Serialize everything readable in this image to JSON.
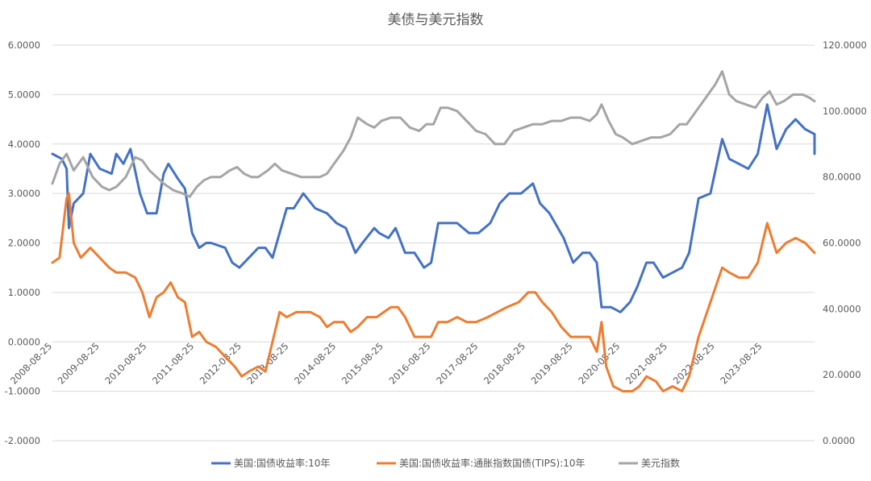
{
  "chart_data": {
    "type": "line",
    "title": "美债与美元指数",
    "categories": [
      "2008-08-25",
      "2009-08-25",
      "2010-08-25",
      "2011-08-25",
      "2012-08-25",
      "2013-08-25",
      "2014-08-25",
      "2015-08-25",
      "2016-08-25",
      "2017-08-25",
      "2018-08-25",
      "2019-08-25",
      "2020-08-25",
      "2021-08-25",
      "2022-08-25",
      "2023-08-25"
    ],
    "y_left": {
      "lim": [
        -2,
        6
      ],
      "ticks": [
        -2,
        -1,
        0,
        1,
        2,
        3,
        4,
        5,
        6
      ],
      "tick_labels": [
        "-2.0000",
        "-1.0000",
        "0.0000",
        "1.0000",
        "2.0000",
        "3.0000",
        "4.0000",
        "5.0000",
        "6.0000"
      ]
    },
    "y_right": {
      "lim": [
        0,
        120
      ],
      "ticks": [
        0,
        20,
        40,
        60,
        80,
        100,
        120
      ],
      "tick_labels": [
        "0.0000",
        "20.0000",
        "40.0000",
        "60.0000",
        "80.0000",
        "100.0000",
        "120.0000"
      ]
    },
    "x_range": [
      2008.65,
      2024.75
    ],
    "legend_position": "bottom",
    "series": [
      {
        "name": "美国:国债收益率:10年",
        "axis": "left",
        "color": "#4472C4",
        "points": [
          [
            2008.65,
            3.8
          ],
          [
            2008.85,
            3.7
          ],
          [
            2008.95,
            3.5
          ],
          [
            2009.0,
            2.3
          ],
          [
            2009.1,
            2.8
          ],
          [
            2009.3,
            3.0
          ],
          [
            2009.45,
            3.8
          ],
          [
            2009.65,
            3.5
          ],
          [
            2009.9,
            3.4
          ],
          [
            2010.0,
            3.8
          ],
          [
            2010.15,
            3.6
          ],
          [
            2010.3,
            3.9
          ],
          [
            2010.5,
            3.0
          ],
          [
            2010.65,
            2.6
          ],
          [
            2010.85,
            2.6
          ],
          [
            2011.0,
            3.4
          ],
          [
            2011.1,
            3.6
          ],
          [
            2011.3,
            3.3
          ],
          [
            2011.45,
            3.1
          ],
          [
            2011.6,
            2.2
          ],
          [
            2011.75,
            1.9
          ],
          [
            2011.9,
            2.0
          ],
          [
            2012.0,
            2.0
          ],
          [
            2012.3,
            1.9
          ],
          [
            2012.45,
            1.6
          ],
          [
            2012.6,
            1.5
          ],
          [
            2012.8,
            1.7
          ],
          [
            2013.0,
            1.9
          ],
          [
            2013.15,
            1.9
          ],
          [
            2013.3,
            1.7
          ],
          [
            2013.45,
            2.2
          ],
          [
            2013.6,
            2.7
          ],
          [
            2013.75,
            2.7
          ],
          [
            2013.95,
            3.0
          ],
          [
            2014.2,
            2.7
          ],
          [
            2014.45,
            2.6
          ],
          [
            2014.65,
            2.4
          ],
          [
            2014.85,
            2.3
          ],
          [
            2015.05,
            1.8
          ],
          [
            2015.2,
            2.0
          ],
          [
            2015.45,
            2.3
          ],
          [
            2015.55,
            2.2
          ],
          [
            2015.75,
            2.1
          ],
          [
            2015.9,
            2.3
          ],
          [
            2016.1,
            1.8
          ],
          [
            2016.3,
            1.8
          ],
          [
            2016.5,
            1.5
          ],
          [
            2016.65,
            1.6
          ],
          [
            2016.8,
            2.4
          ],
          [
            2017.0,
            2.4
          ],
          [
            2017.2,
            2.4
          ],
          [
            2017.45,
            2.2
          ],
          [
            2017.65,
            2.2
          ],
          [
            2017.9,
            2.4
          ],
          [
            2018.1,
            2.8
          ],
          [
            2018.3,
            3.0
          ],
          [
            2018.55,
            3.0
          ],
          [
            2018.8,
            3.2
          ],
          [
            2018.95,
            2.8
          ],
          [
            2019.15,
            2.6
          ],
          [
            2019.45,
            2.1
          ],
          [
            2019.65,
            1.6
          ],
          [
            2019.85,
            1.8
          ],
          [
            2020.0,
            1.8
          ],
          [
            2020.15,
            1.6
          ],
          [
            2020.25,
            0.7
          ],
          [
            2020.45,
            0.7
          ],
          [
            2020.65,
            0.6
          ],
          [
            2020.85,
            0.8
          ],
          [
            2021.0,
            1.1
          ],
          [
            2021.2,
            1.6
          ],
          [
            2021.35,
            1.6
          ],
          [
            2021.55,
            1.3
          ],
          [
            2021.75,
            1.4
          ],
          [
            2021.95,
            1.5
          ],
          [
            2022.1,
            1.8
          ],
          [
            2022.3,
            2.9
          ],
          [
            2022.55,
            3.0
          ],
          [
            2022.8,
            4.1
          ],
          [
            2022.95,
            3.7
          ],
          [
            2023.15,
            3.6
          ],
          [
            2023.35,
            3.5
          ],
          [
            2023.55,
            3.8
          ],
          [
            2023.75,
            4.8
          ],
          [
            2023.95,
            3.9
          ],
          [
            2024.15,
            4.3
          ],
          [
            2024.35,
            4.5
          ],
          [
            2024.55,
            4.3
          ],
          [
            2024.75,
            4.2
          ],
          [
            2024.75,
            3.8
          ]
        ]
      },
      {
        "name": "美国:国债收益率:通胀指数国债(TIPS):10年",
        "axis": "left",
        "color": "#ED7D31",
        "points": [
          [
            2008.65,
            1.6
          ],
          [
            2008.8,
            1.7
          ],
          [
            2008.95,
            2.9
          ],
          [
            2009.0,
            3.0
          ],
          [
            2009.1,
            2.0
          ],
          [
            2009.25,
            1.7
          ],
          [
            2009.45,
            1.9
          ],
          [
            2009.65,
            1.7
          ],
          [
            2009.85,
            1.5
          ],
          [
            2010.0,
            1.4
          ],
          [
            2010.2,
            1.4
          ],
          [
            2010.4,
            1.3
          ],
          [
            2010.55,
            1.0
          ],
          [
            2010.7,
            0.5
          ],
          [
            2010.85,
            0.9
          ],
          [
            2011.0,
            1.0
          ],
          [
            2011.15,
            1.2
          ],
          [
            2011.3,
            0.9
          ],
          [
            2011.45,
            0.8
          ],
          [
            2011.6,
            0.1
          ],
          [
            2011.75,
            0.2
          ],
          [
            2011.9,
            0.0
          ],
          [
            2012.1,
            -0.1
          ],
          [
            2012.3,
            -0.3
          ],
          [
            2012.5,
            -0.5
          ],
          [
            2012.65,
            -0.7
          ],
          [
            2012.8,
            -0.6
          ],
          [
            2013.0,
            -0.5
          ],
          [
            2013.15,
            -0.6
          ],
          [
            2013.3,
            0.0
          ],
          [
            2013.45,
            0.6
          ],
          [
            2013.6,
            0.5
          ],
          [
            2013.8,
            0.6
          ],
          [
            2013.95,
            0.6
          ],
          [
            2014.1,
            0.6
          ],
          [
            2014.3,
            0.5
          ],
          [
            2014.45,
            0.3
          ],
          [
            2014.6,
            0.4
          ],
          [
            2014.8,
            0.4
          ],
          [
            2014.95,
            0.2
          ],
          [
            2015.1,
            0.3
          ],
          [
            2015.3,
            0.5
          ],
          [
            2015.5,
            0.5
          ],
          [
            2015.65,
            0.6
          ],
          [
            2015.8,
            0.7
          ],
          [
            2015.95,
            0.7
          ],
          [
            2016.1,
            0.5
          ],
          [
            2016.3,
            0.1
          ],
          [
            2016.5,
            0.1
          ],
          [
            2016.65,
            0.1
          ],
          [
            2016.8,
            0.4
          ],
          [
            2017.0,
            0.4
          ],
          [
            2017.2,
            0.5
          ],
          [
            2017.4,
            0.4
          ],
          [
            2017.6,
            0.4
          ],
          [
            2017.85,
            0.5
          ],
          [
            2018.05,
            0.6
          ],
          [
            2018.25,
            0.7
          ],
          [
            2018.5,
            0.8
          ],
          [
            2018.7,
            1.0
          ],
          [
            2018.85,
            1.0
          ],
          [
            2019.0,
            0.8
          ],
          [
            2019.2,
            0.6
          ],
          [
            2019.4,
            0.3
          ],
          [
            2019.6,
            0.1
          ],
          [
            2019.8,
            0.1
          ],
          [
            2020.0,
            0.1
          ],
          [
            2020.15,
            -0.2
          ],
          [
            2020.25,
            0.4
          ],
          [
            2020.35,
            -0.5
          ],
          [
            2020.5,
            -0.9
          ],
          [
            2020.7,
            -1.0
          ],
          [
            2020.9,
            -1.0
          ],
          [
            2021.05,
            -0.9
          ],
          [
            2021.2,
            -0.7
          ],
          [
            2021.4,
            -0.8
          ],
          [
            2021.55,
            -1.0
          ],
          [
            2021.75,
            -0.9
          ],
          [
            2021.95,
            -1.0
          ],
          [
            2022.1,
            -0.7
          ],
          [
            2022.3,
            0.1
          ],
          [
            2022.55,
            0.8
          ],
          [
            2022.8,
            1.5
          ],
          [
            2022.95,
            1.4
          ],
          [
            2023.15,
            1.3
          ],
          [
            2023.35,
            1.3
          ],
          [
            2023.55,
            1.6
          ],
          [
            2023.75,
            2.4
          ],
          [
            2023.95,
            1.8
          ],
          [
            2024.15,
            2.0
          ],
          [
            2024.35,
            2.1
          ],
          [
            2024.55,
            2.0
          ],
          [
            2024.75,
            1.8
          ]
        ]
      },
      {
        "name": "美元指数",
        "axis": "right",
        "color": "#A5A5A5",
        "points": [
          [
            2008.65,
            78
          ],
          [
            2008.8,
            84
          ],
          [
            2008.95,
            87
          ],
          [
            2009.1,
            82
          ],
          [
            2009.3,
            86
          ],
          [
            2009.5,
            80
          ],
          [
            2009.7,
            77
          ],
          [
            2009.85,
            76
          ],
          [
            2010.0,
            77
          ],
          [
            2010.2,
            80
          ],
          [
            2010.4,
            86
          ],
          [
            2010.55,
            85
          ],
          [
            2010.7,
            82
          ],
          [
            2010.85,
            80
          ],
          [
            2011.0,
            78
          ],
          [
            2011.2,
            76
          ],
          [
            2011.4,
            75
          ],
          [
            2011.55,
            74
          ],
          [
            2011.7,
            77
          ],
          [
            2011.85,
            79
          ],
          [
            2012.0,
            80
          ],
          [
            2012.2,
            80
          ],
          [
            2012.4,
            82
          ],
          [
            2012.55,
            83
          ],
          [
            2012.7,
            81
          ],
          [
            2012.85,
            80
          ],
          [
            2013.0,
            80
          ],
          [
            2013.2,
            82
          ],
          [
            2013.35,
            84
          ],
          [
            2013.5,
            82
          ],
          [
            2013.7,
            81
          ],
          [
            2013.9,
            80
          ],
          [
            2014.1,
            80
          ],
          [
            2014.3,
            80
          ],
          [
            2014.45,
            81
          ],
          [
            2014.6,
            84
          ],
          [
            2014.8,
            88
          ],
          [
            2014.95,
            92
          ],
          [
            2015.1,
            98
          ],
          [
            2015.3,
            96
          ],
          [
            2015.45,
            95
          ],
          [
            2015.6,
            97
          ],
          [
            2015.8,
            98
          ],
          [
            2016.0,
            98
          ],
          [
            2016.2,
            95
          ],
          [
            2016.4,
            94
          ],
          [
            2016.55,
            96
          ],
          [
            2016.7,
            96
          ],
          [
            2016.85,
            101
          ],
          [
            2017.0,
            101
          ],
          [
            2017.2,
            100
          ],
          [
            2017.4,
            97
          ],
          [
            2017.6,
            94
          ],
          [
            2017.8,
            93
          ],
          [
            2018.0,
            90
          ],
          [
            2018.2,
            90
          ],
          [
            2018.4,
            94
          ],
          [
            2018.6,
            95
          ],
          [
            2018.8,
            96
          ],
          [
            2019.0,
            96
          ],
          [
            2019.2,
            97
          ],
          [
            2019.4,
            97
          ],
          [
            2019.6,
            98
          ],
          [
            2019.8,
            98
          ],
          [
            2020.0,
            97
          ],
          [
            2020.15,
            99
          ],
          [
            2020.25,
            102
          ],
          [
            2020.4,
            97
          ],
          [
            2020.55,
            93
          ],
          [
            2020.7,
            92
          ],
          [
            2020.9,
            90
          ],
          [
            2021.1,
            91
          ],
          [
            2021.3,
            92
          ],
          [
            2021.5,
            92
          ],
          [
            2021.7,
            93
          ],
          [
            2021.9,
            96
          ],
          [
            2022.05,
            96
          ],
          [
            2022.25,
            100
          ],
          [
            2022.45,
            104
          ],
          [
            2022.65,
            108
          ],
          [
            2022.8,
            112
          ],
          [
            2022.95,
            105
          ],
          [
            2023.1,
            103
          ],
          [
            2023.3,
            102
          ],
          [
            2023.5,
            101
          ],
          [
            2023.65,
            104
          ],
          [
            2023.8,
            106
          ],
          [
            2023.95,
            102
          ],
          [
            2024.1,
            103
          ],
          [
            2024.3,
            105
          ],
          [
            2024.5,
            105
          ],
          [
            2024.65,
            104
          ],
          [
            2024.75,
            103
          ]
        ]
      }
    ]
  }
}
